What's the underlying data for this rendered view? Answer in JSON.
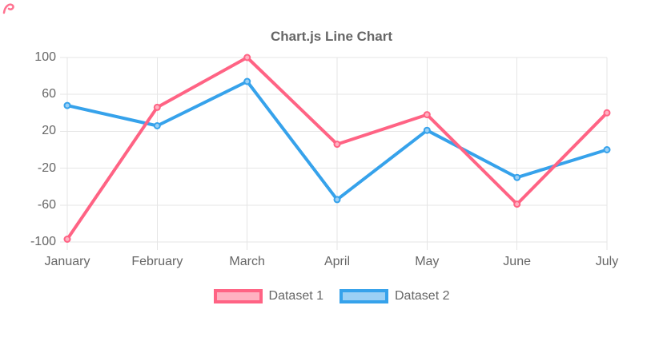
{
  "chart_data": {
    "type": "line",
    "title": "Chart.js Line Chart",
    "categories": [
      "January",
      "February",
      "March",
      "April",
      "May",
      "June",
      "July"
    ],
    "series": [
      {
        "name": "Dataset 1",
        "values": [
          -97,
          46,
          100,
          6,
          38,
          -59,
          40
        ],
        "border_color": "#FF6384",
        "fill_color": "#FFB1C1"
      },
      {
        "name": "Dataset 2",
        "values": [
          48,
          26,
          74,
          -54,
          21,
          -30,
          0
        ],
        "border_color": "#36A2EB",
        "fill_color": "#9BD0F5"
      }
    ],
    "ylim": [
      -100,
      100
    ],
    "yticks": [
      100,
      60,
      20,
      -20,
      -60,
      -100
    ],
    "grid": true,
    "grid_color": "#e5e5e5",
    "text_color": "#666666",
    "legend_position": "bottom",
    "draw_order_note": "dataset 1 drawn on top of dataset 2",
    "xlabel": "",
    "ylabel": ""
  }
}
